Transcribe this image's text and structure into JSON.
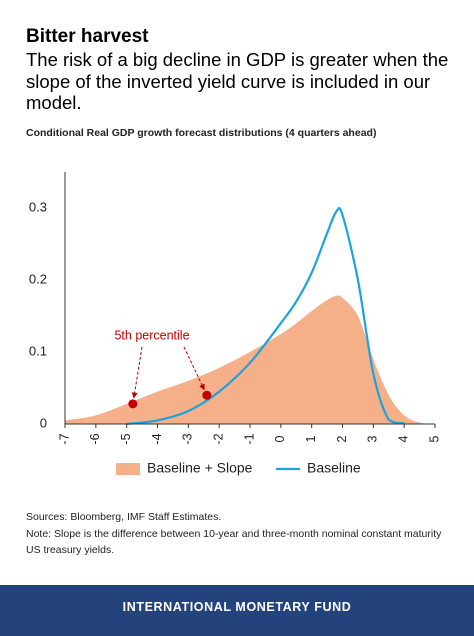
{
  "header": {
    "title": "Bitter harvest",
    "subtitle": "The risk of a big decline in GDP is greater when the slope of the inverted yield curve is included in our model."
  },
  "chart_data": {
    "type": "area",
    "title": "Conditional Real GDP growth forecast distributions (4 quarters ahead)",
    "x": [
      -7,
      -6,
      -5,
      -4,
      -3,
      -2,
      -1,
      0,
      0.5,
      1,
      1.5,
      1.8,
      2,
      2.5,
      3,
      3.5,
      4,
      4.5,
      5
    ],
    "series": [
      {
        "name": "Baseline + Slope",
        "type": "area",
        "color": "#f5b08a",
        "values": [
          0.005,
          0.012,
          0.028,
          0.045,
          0.06,
          0.078,
          0.1,
          0.125,
          0.14,
          0.157,
          0.172,
          0.178,
          0.175,
          0.15,
          0.09,
          0.04,
          0.012,
          0.002,
          0
        ]
      },
      {
        "name": "Baseline",
        "type": "line",
        "color": "#1ba3dd",
        "values": [
          null,
          null,
          0,
          0.005,
          0.018,
          0.045,
          0.085,
          0.14,
          0.17,
          0.21,
          0.265,
          0.295,
          0.29,
          0.2,
          0.07,
          0.006,
          0.001,
          null,
          null
        ]
      }
    ],
    "annotation": {
      "text": "5th percentile",
      "color": "#c00000",
      "x": [
        -4.8,
        -2.4
      ],
      "y": [
        0.028,
        0.04
      ]
    },
    "xlim": [
      -7,
      5
    ],
    "ylim": [
      0,
      0.35
    ],
    "xticks": [
      -7,
      -6,
      -5,
      -4,
      -3,
      -2,
      -1,
      0,
      1,
      2,
      3,
      4,
      5
    ],
    "yticks": [
      0,
      0.1,
      0.2,
      0.3
    ],
    "legend": "bottom"
  },
  "footer": {
    "sources": "Sources: Bloomberg, IMF Staff Estimates.",
    "note": "Note: Slope is the difference between 10-year and three-month nominal constant maturity US treasury yields.",
    "brand": "INTERNATIONAL MONETARY FUND"
  }
}
